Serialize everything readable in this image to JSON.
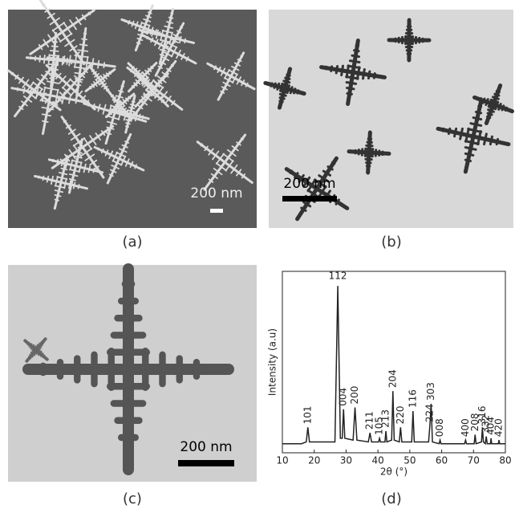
{
  "panels": [
    {
      "caption": "(a)",
      "scale_bar": "200 nm"
    },
    {
      "caption": "(b)",
      "scale_bar": "200 nm"
    },
    {
      "caption": "(c)",
      "scale_bar": "200 nm"
    },
    {
      "caption": "(d)"
    }
  ],
  "chart_data": {
    "type": "line",
    "x_label": "2θ (°)",
    "y_label": "Intensity (a.u)",
    "xlim": [
      10,
      80
    ],
    "xticks": [
      10,
      20,
      30,
      40,
      50,
      60,
      70,
      80
    ],
    "ylim": [
      0,
      100
    ],
    "x": [
      10,
      16,
      17.5,
      18,
      18.5,
      26.5,
      27.4,
      28.2,
      28.8,
      29.2,
      29.6,
      32.2,
      32.8,
      33.4,
      37,
      37.5,
      38,
      40.2,
      40.5,
      40.8,
      42.2,
      42.5,
      42.8,
      44.3,
      44.7,
      45.1,
      46.7,
      47.1,
      47.5,
      50.6,
      51,
      51.4,
      55.9,
      56.3,
      56.7,
      57.1,
      59.2,
      59.5,
      59.8,
      67.2,
      67.5,
      67.8,
      70.2,
      70.5,
      70.8,
      72.5,
      72.8,
      73.1,
      73.7,
      74,
      74.3,
      75.3,
      75.5,
      75.7,
      77.8,
      78,
      78.2,
      80
    ],
    "series": [
      {
        "color": "#222222",
        "values": [
          5,
          5,
          6,
          14,
          6,
          6,
          92,
          8,
          8,
          24,
          8,
          7,
          25,
          7,
          6,
          11,
          6,
          6,
          8,
          6,
          6,
          12,
          6,
          7,
          34,
          7,
          6,
          14,
          6,
          6,
          23,
          6,
          6,
          15,
          27,
          6,
          5,
          7,
          5,
          5,
          7,
          5,
          5,
          10,
          5,
          6,
          14,
          6,
          5,
          9,
          5,
          5,
          8,
          5,
          5,
          7,
          5,
          5
        ]
      }
    ],
    "peak_labels": [
      {
        "text": "101",
        "x": 18
      },
      {
        "text": "112",
        "x": 27.4
      },
      {
        "text": "004",
        "x": 29.2
      },
      {
        "text": "200",
        "x": 32.8
      },
      {
        "text": "211",
        "x": 37.5
      },
      {
        "text": "105",
        "x": 40.5
      },
      {
        "text": "213",
        "x": 42.5
      },
      {
        "text": "204",
        "x": 44.7
      },
      {
        "text": "220",
        "x": 47.1
      },
      {
        "text": "116",
        "x": 51
      },
      {
        "text": "224",
        "x": 56.3
      },
      {
        "text": "303",
        "x": 56.7
      },
      {
        "text": "008",
        "x": 59.5
      },
      {
        "text": "400",
        "x": 67.5
      },
      {
        "text": "208",
        "x": 70.5
      },
      {
        "text": "316",
        "x": 72.8
      },
      {
        "text": "332",
        "x": 74
      },
      {
        "text": "404",
        "x": 75.5
      },
      {
        "text": "420",
        "x": 78
      }
    ]
  }
}
